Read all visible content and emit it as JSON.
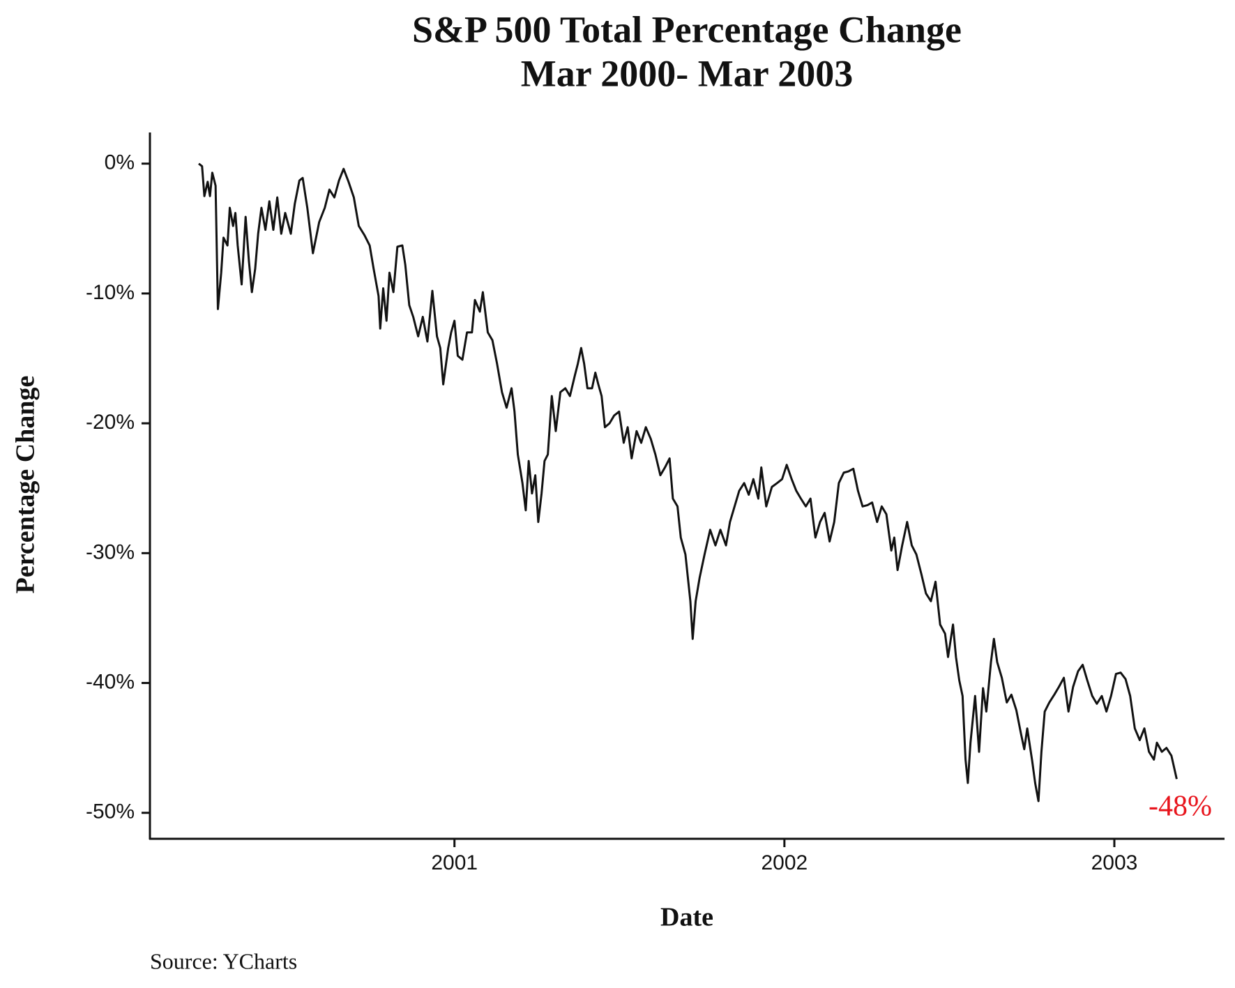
{
  "chart_data": {
    "type": "line",
    "title": "S&P 500 Total Percentage Change",
    "subtitle": "Mar 2000- Mar 2003",
    "x_label": "Date",
    "y_label": "Percentage Change",
    "source": "Source: YCharts",
    "annotation": {
      "text": "-48%",
      "color": "#e8141c"
    },
    "grid": false,
    "xlim": [
      2000.077,
      2003.334
    ],
    "xticks": [
      2001,
      2002,
      2003
    ],
    "ylim": [
      -52,
      2.4
    ],
    "yticks": [
      {
        "value": 0,
        "label": "0%"
      },
      {
        "value": -10,
        "label": "-10%"
      },
      {
        "value": -20,
        "label": "-20%"
      },
      {
        "value": -30,
        "label": "-30%"
      },
      {
        "value": -40,
        "label": "-40%"
      },
      {
        "value": -50,
        "label": "-50%"
      }
    ],
    "x": [
      2000.225,
      2000.235,
      2000.242,
      2000.252,
      2000.259,
      2000.266,
      2000.276,
      2000.283,
      2000.293,
      2000.3,
      2000.312,
      2000.319,
      2000.329,
      2000.336,
      2000.343,
      2000.355,
      2000.367,
      2000.377,
      2000.386,
      2000.396,
      2000.405,
      2000.415,
      2000.427,
      2000.439,
      2000.451,
      2000.463,
      2000.475,
      2000.487,
      2000.504,
      2000.516,
      2000.53,
      2000.54,
      2000.554,
      2000.571,
      2000.59,
      2000.607,
      2000.621,
      2000.636,
      2000.65,
      2000.664,
      2000.679,
      2000.695,
      2000.71,
      2000.727,
      2000.743,
      2000.755,
      2000.77,
      2000.775,
      2000.784,
      2000.794,
      2000.803,
      2000.815,
      2000.827,
      2000.842,
      2000.851,
      2000.863,
      2000.875,
      2000.89,
      2000.904,
      2000.918,
      2000.933,
      2000.947,
      2000.957,
      2000.966,
      2000.981,
      2000.99,
      2001.0,
      2001.01,
      2001.024,
      2001.038,
      2001.053,
      2001.062,
      2001.077,
      2001.086,
      2001.101,
      2001.115,
      2001.129,
      2001.144,
      2001.158,
      2001.173,
      2001.182,
      2001.192,
      2001.206,
      2001.216,
      2001.225,
      2001.235,
      2001.245,
      2001.254,
      2001.264,
      2001.273,
      2001.283,
      2001.295,
      2001.307,
      2001.321,
      2001.336,
      2001.35,
      2001.365,
      2001.374,
      2001.384,
      2001.393,
      2001.403,
      2001.417,
      2001.427,
      2001.436,
      2001.446,
      2001.456,
      2001.47,
      2001.484,
      2001.499,
      2001.513,
      2001.525,
      2001.537,
      2001.552,
      2001.566,
      2001.58,
      2001.595,
      2001.609,
      2001.624,
      2001.638,
      2001.652,
      2001.662,
      2001.676,
      2001.686,
      2001.7,
      2001.715,
      2001.722,
      2001.731,
      2001.743,
      2001.758,
      2001.775,
      2001.791,
      2001.806,
      2001.823,
      2001.835,
      2001.849,
      2001.863,
      2001.878,
      2001.892,
      2001.906,
      2001.921,
      2001.93,
      2001.945,
      2001.962,
      2001.978,
      2001.993,
      2002.007,
      2002.022,
      2002.036,
      2002.05,
      2002.065,
      2002.079,
      2002.094,
      2002.108,
      2002.122,
      2002.137,
      2002.151,
      2002.165,
      2002.18,
      2002.194,
      2002.209,
      2002.223,
      2002.237,
      2002.252,
      2002.266,
      2002.281,
      2002.295,
      2002.309,
      2002.324,
      2002.333,
      2002.343,
      2002.357,
      2002.372,
      2002.386,
      2002.4,
      2002.415,
      2002.429,
      2002.444,
      2002.458,
      2002.472,
      2002.487,
      2002.496,
      2002.511,
      2002.52,
      2002.53,
      2002.54,
      2002.549,
      2002.556,
      2002.564,
      2002.578,
      2002.59,
      2002.602,
      2002.612,
      2002.626,
      2002.635,
      2002.645,
      2002.659,
      2002.674,
      2002.688,
      2002.703,
      2002.717,
      2002.727,
      2002.736,
      2002.751,
      2002.76,
      2002.77,
      2002.779,
      2002.789,
      2002.803,
      2002.818,
      2002.832,
      2002.847,
      2002.861,
      2002.875,
      2002.89,
      2002.904,
      2002.918,
      2002.933,
      2002.947,
      2002.962,
      2002.976,
      2002.99,
      2003.005,
      2003.019,
      2003.034,
      2003.048,
      2003.062,
      2003.077,
      2003.091,
      2003.105,
      2003.12,
      2003.129,
      2003.144,
      2003.158,
      2003.173,
      2003.189
    ],
    "series": [
      {
        "name": "S&P 500",
        "color": "#111111",
        "values": [
          0,
          -0.2,
          -2.5,
          -1.4,
          -2.5,
          -0.7,
          -1.7,
          -11.2,
          -8.4,
          -5.7,
          -6.3,
          -3.4,
          -4.8,
          -3.8,
          -6.3,
          -9.3,
          -4.1,
          -7.5,
          -9.9,
          -8.1,
          -5.4,
          -3.4,
          -5.1,
          -2.9,
          -5.1,
          -2.6,
          -5.4,
          -3.8,
          -5.4,
          -3.1,
          -1.3,
          -1.1,
          -3.4,
          -6.9,
          -4.5,
          -3.4,
          -2.0,
          -2.6,
          -1.3,
          -0.4,
          -1.4,
          -2.6,
          -4.8,
          -5.5,
          -6.3,
          -8.1,
          -10.2,
          -12.7,
          -9.6,
          -12.1,
          -8.4,
          -9.9,
          -6.4,
          -6.3,
          -7.8,
          -10.9,
          -11.8,
          -13.3,
          -11.8,
          -13.7,
          -9.8,
          -13.3,
          -14.2,
          -17.0,
          -14.2,
          -13.0,
          -12.1,
          -14.8,
          -15.1,
          -13.0,
          -13.0,
          -10.5,
          -11.4,
          -9.9,
          -13.0,
          -13.6,
          -15.4,
          -17.6,
          -18.8,
          -17.3,
          -19.1,
          -22.4,
          -24.6,
          -26.7,
          -22.9,
          -25.4,
          -24.0,
          -27.6,
          -25.4,
          -22.9,
          -22.4,
          -17.9,
          -20.6,
          -17.6,
          -17.3,
          -17.9,
          -16.3,
          -15.4,
          -14.2,
          -15.4,
          -17.3,
          -17.3,
          -16.1,
          -17.0,
          -17.9,
          -20.3,
          -20.0,
          -19.4,
          -19.1,
          -21.5,
          -20.3,
          -22.7,
          -20.6,
          -21.5,
          -20.3,
          -21.2,
          -22.4,
          -24.0,
          -23.4,
          -22.7,
          -25.8,
          -26.4,
          -28.8,
          -30.1,
          -33.7,
          -36.6,
          -33.7,
          -31.9,
          -30.1,
          -28.2,
          -29.4,
          -28.2,
          -29.4,
          -27.6,
          -26.4,
          -25.2,
          -24.6,
          -25.5,
          -24.3,
          -25.8,
          -23.4,
          -26.4,
          -24.9,
          -24.6,
          -24.3,
          -23.2,
          -24.3,
          -25.2,
          -25.8,
          -26.4,
          -25.8,
          -28.8,
          -27.6,
          -26.9,
          -29.1,
          -27.6,
          -24.6,
          -23.8,
          -23.7,
          -23.5,
          -25.2,
          -26.4,
          -26.3,
          -26.1,
          -27.6,
          -26.4,
          -27.0,
          -29.8,
          -28.8,
          -31.3,
          -29.4,
          -27.6,
          -29.4,
          -30.1,
          -31.6,
          -33.1,
          -33.7,
          -32.2,
          -35.5,
          -36.2,
          -38.0,
          -35.5,
          -38.0,
          -39.8,
          -41.0,
          -45.9,
          -47.7,
          -44.6,
          -41.0,
          -45.3,
          -40.4,
          -42.2,
          -38.4,
          -36.6,
          -38.4,
          -39.6,
          -41.5,
          -40.9,
          -42.1,
          -43.9,
          -45.1,
          -43.5,
          -46.0,
          -47.7,
          -49.1,
          -45.3,
          -42.2,
          -41.5,
          -40.9,
          -40.3,
          -39.6,
          -42.2,
          -40.3,
          -39.1,
          -38.6,
          -39.8,
          -41.0,
          -41.6,
          -41.0,
          -42.2,
          -41.0,
          -39.3,
          -39.2,
          -39.7,
          -41.0,
          -43.5,
          -44.4,
          -43.5,
          -45.3,
          -45.9,
          -44.6,
          -45.3,
          -45.0,
          -45.6,
          -47.4
        ]
      }
    ]
  }
}
